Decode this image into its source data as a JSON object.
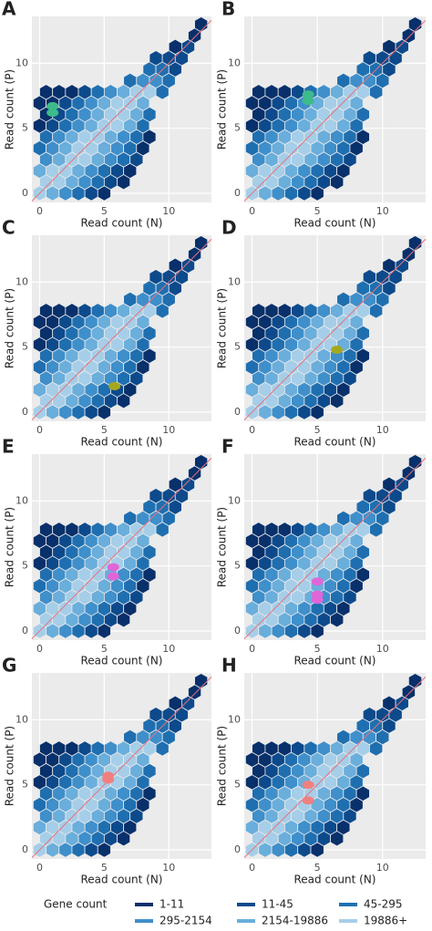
{
  "chart_data": {
    "type": "hexbin",
    "x_label": "Read count (N)",
    "y_label": "Read count (P)",
    "xlim": [
      -0.6,
      13.3
    ],
    "ylim": [
      -0.7,
      13.6
    ],
    "xticks": [
      0,
      5,
      10
    ],
    "yticks": [
      0,
      5,
      10
    ],
    "grid": true,
    "legend": {
      "title": "Gene count",
      "levels": [
        {
          "label": "1-11",
          "color": "#08306b"
        },
        {
          "label": "11-45",
          "color": "#0d4a8c"
        },
        {
          "label": "45-295",
          "color": "#1f6fb0"
        },
        {
          "label": "295-2154",
          "color": "#3f8fcb"
        },
        {
          "label": "2154-19886",
          "color": "#6aaedc"
        },
        {
          "label": "19886+",
          "color": "#a6cee8"
        }
      ]
    },
    "hexbins": [
      {
        "y": 0,
        "x": [
          0,
          1,
          2,
          3,
          4,
          5
        ],
        "level": [
          "19886+",
          "2154-19886",
          "295-2154",
          "45-295",
          "11-45",
          "1-11"
        ]
      },
      {
        "y": 0.87,
        "x": [
          0.5,
          1.5,
          2.5,
          3.5,
          4.5,
          5.5,
          6.5
        ],
        "level": [
          "19886+",
          "19886+",
          "2154-19886",
          "295-2154",
          "45-295",
          "11-45",
          "1-11"
        ]
      },
      {
        "y": 1.73,
        "x": [
          0,
          1,
          2,
          3,
          4,
          5,
          6,
          7
        ],
        "level": [
          "2154-19886",
          "19886+",
          "19886+",
          "2154-19886",
          "295-2154",
          "45-295",
          "11-45",
          "1-11"
        ]
      },
      {
        "y": 2.6,
        "x": [
          0.5,
          1.5,
          2.5,
          3.5,
          4.5,
          5.5,
          6.5,
          7.5
        ],
        "level": [
          "295-2154",
          "2154-19886",
          "19886+",
          "19886+",
          "2154-19886",
          "295-2154",
          "45-295",
          "11-45"
        ]
      },
      {
        "y": 3.46,
        "x": [
          0,
          1,
          2,
          3,
          4,
          5,
          6,
          7,
          8
        ],
        "level": [
          "45-295",
          "295-2154",
          "2154-19886",
          "19886+",
          "19886+",
          "2154-19886",
          "295-2154",
          "45-295",
          "1-11"
        ]
      },
      {
        "y": 4.33,
        "x": [
          0.5,
          1.5,
          2.5,
          3.5,
          4.5,
          5.5,
          6.5,
          7.5,
          8.5
        ],
        "level": [
          "45-295",
          "295-2154",
          "2154-19886",
          "19886+",
          "19886+",
          "2154-19886",
          "295-2154",
          "45-295",
          "1-11"
        ]
      },
      {
        "y": 5.2,
        "x": [
          0,
          1,
          2,
          3,
          4,
          5,
          6,
          7,
          8
        ],
        "level": [
          "1-11",
          "11-45",
          "45-295",
          "295-2154",
          "2154-19886",
          "19886+",
          "19886+",
          "2154-19886",
          "45-295"
        ]
      },
      {
        "y": 6.06,
        "x": [
          0.5,
          1.5,
          2.5,
          3.5,
          4.5,
          5.5,
          6.5,
          7.5,
          8.5
        ],
        "level": [
          "1-11",
          "11-45",
          "45-295",
          "295-2154",
          "2154-19886",
          "19886+",
          "19886+",
          "2154-19886",
          "45-295"
        ]
      },
      {
        "y": 6.93,
        "x": [
          0,
          1,
          2,
          3,
          4,
          5,
          6,
          7,
          8
        ],
        "level": [
          "1-11",
          "1-11",
          "11-45",
          "45-295",
          "295-2154",
          "2154-19886",
          "19886+",
          "19886+",
          "2154-19886"
        ]
      },
      {
        "y": 7.79,
        "x": [
          0.5,
          1.5,
          2.5,
          3.5,
          4.5,
          5.5,
          6.5,
          7.5,
          8.5,
          9.5
        ],
        "level": [
          "1-11",
          "1-11",
          "1-11",
          "11-45",
          "45-295",
          "295-2154",
          "2154-19886",
          "19886+",
          "19886+",
          "45-295"
        ]
      },
      {
        "y": 8.66,
        "x": [
          7,
          8,
          9,
          10
        ],
        "level": [
          "45-295",
          "295-2154",
          "295-2154",
          "45-295"
        ]
      },
      {
        "y": 9.53,
        "x": [
          8.5,
          9.5,
          10.5
        ],
        "level": [
          "45-295",
          "45-295",
          "11-45"
        ]
      },
      {
        "y": 10.39,
        "x": [
          9,
          10,
          11
        ],
        "level": [
          "11-45",
          "11-45",
          "11-45"
        ]
      },
      {
        "y": 11.26,
        "x": [
          10.5,
          11.5
        ],
        "level": [
          "1-11",
          "11-45"
        ]
      },
      {
        "y": 12.12,
        "x": [
          12
        ],
        "level": [
          "1-11"
        ]
      },
      {
        "y": 12.99,
        "x": [
          12.5
        ],
        "level": [
          "1-11"
        ]
      }
    ],
    "panels": [
      {
        "label": "A",
        "highlight": {
          "color": "#3dbb8a",
          "x": [
            1,
            1
          ],
          "y": [
            6.7,
            6.2
          ]
        }
      },
      {
        "label": "B",
        "highlight": {
          "color": "#3dbb8a",
          "x": [
            4.3,
            4.3
          ],
          "y": [
            7.6,
            7.1
          ]
        }
      },
      {
        "label": "C",
        "highlight": {
          "color": "#a5a81e",
          "x": [
            5.8
          ],
          "y": [
            2
          ]
        }
      },
      {
        "label": "D",
        "highlight": {
          "color": "#a5a81e",
          "x": [
            6.5
          ],
          "y": [
            4.8
          ]
        }
      },
      {
        "label": "E",
        "highlight": {
          "color": "#e066d8",
          "x": [
            5.7,
            5.7
          ],
          "y": [
            4.9,
            4.2
          ]
        }
      },
      {
        "label": "F",
        "highlight": {
          "color": "#e066d8",
          "x": [
            5,
            5,
            5
          ],
          "y": [
            3.8,
            2.8,
            2.4
          ]
        }
      },
      {
        "label": "G",
        "highlight": {
          "color": "#f08080",
          "x": [
            5.3,
            5.3
          ],
          "y": [
            5.7,
            5.4
          ]
        }
      },
      {
        "label": "H",
        "highlight": {
          "color": "#f08080",
          "x": [
            4.3,
            4.3
          ],
          "y": [
            5,
            3.8
          ]
        }
      }
    ]
  }
}
